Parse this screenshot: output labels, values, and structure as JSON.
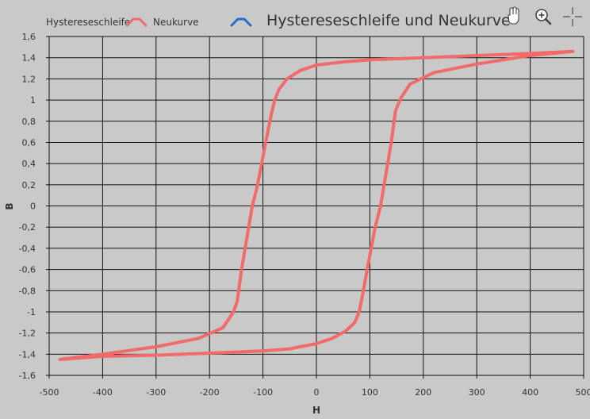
{
  "toolbar": {
    "icons": [
      "hand-pan-icon",
      "zoom-in-icon",
      "crosshair-icon"
    ]
  },
  "colors": {
    "background": "#c9c9c9",
    "grid": "#111111",
    "series_red": "#f26a6a",
    "series_blue": "#1e6fd0",
    "text": "#333333"
  },
  "chart_data": {
    "type": "line",
    "title": "Hystereseschleife und Neukurve",
    "xlabel": "H",
    "ylabel": "B",
    "xlim": [
      -500,
      500
    ],
    "ylim": [
      -1.6,
      1.6
    ],
    "x_ticks": [
      -500,
      -400,
      -300,
      -200,
      -100,
      0,
      100,
      200,
      300,
      400,
      500
    ],
    "x_tick_labels": [
      "-500",
      "-400",
      "-300",
      "-200",
      "-100",
      "0",
      "100",
      "200",
      "300",
      "400",
      "500"
    ],
    "y_ticks": [
      -1.6,
      -1.4,
      -1.2,
      -1.0,
      -0.8,
      -0.6,
      -0.4,
      -0.2,
      0,
      0.2,
      0.4,
      0.6,
      0.8,
      1.0,
      1.2,
      1.4,
      1.6
    ],
    "y_tick_labels": [
      "-1,6",
      "-1,4",
      "-1,2",
      "-1",
      "-0,8",
      "-0,6",
      "-0,4",
      "-0,2",
      "0",
      "0,2",
      "0,4",
      "0,6",
      "0,8",
      "1",
      "1,2",
      "1,4",
      "1,6"
    ],
    "grid": true,
    "legend_position": "top-left",
    "series": [
      {
        "name": "Hystereseschleife",
        "color": "#f26a6a",
        "points": [
          [
            480,
            1.46
          ],
          [
            400,
            1.44
          ],
          [
            300,
            1.42
          ],
          [
            200,
            1.4
          ],
          [
            100,
            1.38
          ],
          [
            50,
            1.36
          ],
          [
            0,
            1.33
          ],
          [
            -30,
            1.28
          ],
          [
            -55,
            1.2
          ],
          [
            -70,
            1.1
          ],
          [
            -78,
            1.0
          ],
          [
            -85,
            0.85
          ],
          [
            -95,
            0.6
          ],
          [
            -110,
            0.2
          ],
          [
            -120,
            0.0
          ],
          [
            -130,
            -0.3
          ],
          [
            -140,
            -0.6
          ],
          [
            -148,
            -0.9
          ],
          [
            -155,
            -1.0
          ],
          [
            -175,
            -1.15
          ],
          [
            -220,
            -1.25
          ],
          [
            -300,
            -1.33
          ],
          [
            -400,
            -1.4
          ],
          [
            -480,
            -1.45
          ],
          [
            -400,
            -1.42
          ],
          [
            -300,
            -1.41
          ],
          [
            -200,
            -1.39
          ],
          [
            -100,
            -1.37
          ],
          [
            -50,
            -1.35
          ],
          [
            0,
            -1.3
          ],
          [
            30,
            -1.25
          ],
          [
            55,
            -1.18
          ],
          [
            72,
            -1.1
          ],
          [
            80,
            -1.0
          ],
          [
            86,
            -0.85
          ],
          [
            95,
            -0.6
          ],
          [
            110,
            -0.2
          ],
          [
            120,
            0.0
          ],
          [
            130,
            0.3
          ],
          [
            140,
            0.6
          ],
          [
            148,
            0.9
          ],
          [
            158,
            1.02
          ],
          [
            175,
            1.15
          ],
          [
            220,
            1.26
          ],
          [
            300,
            1.34
          ],
          [
            400,
            1.42
          ],
          [
            480,
            1.46
          ]
        ]
      },
      {
        "name": "Neukurve",
        "color": "#1e6fd0",
        "points": []
      }
    ]
  }
}
